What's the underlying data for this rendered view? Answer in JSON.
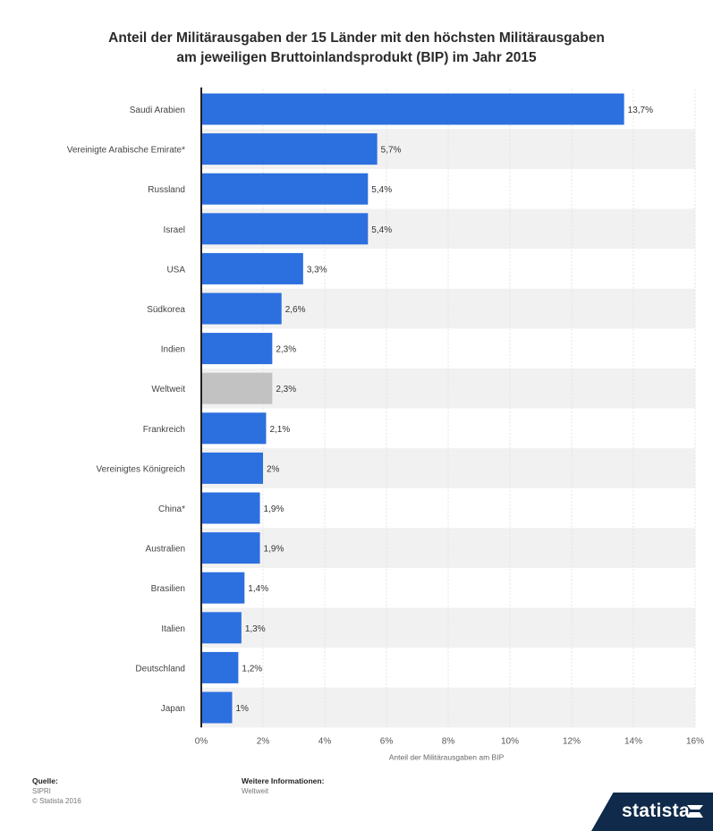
{
  "title": {
    "line1": "Anteil der Militärausgaben der 15 Länder mit den höchsten Militärausgaben",
    "line2": "am jeweiligen Bruttoinlandsprodukt (BIP) im Jahr 2015"
  },
  "chart_data": {
    "type": "bar",
    "orientation": "horizontal",
    "categories": [
      "Saudi Arabien",
      "Vereinigte Arabische Emirate*",
      "Russland",
      "Israel",
      "USA",
      "Südkorea",
      "Indien",
      "Weltweit",
      "Frankreich",
      "Vereinigtes Königreich",
      "China*",
      "Australien",
      "Brasilien",
      "Italien",
      "Deutschland",
      "Japan"
    ],
    "values": [
      13.7,
      5.7,
      5.4,
      5.4,
      3.3,
      2.6,
      2.3,
      2.3,
      2.1,
      2.0,
      1.9,
      1.9,
      1.4,
      1.3,
      1.2,
      1.0
    ],
    "value_labels": [
      "13,7%",
      "5,7%",
      "5,4%",
      "5,4%",
      "3,3%",
      "2,6%",
      "2,3%",
      "2,3%",
      "2,1%",
      "2%",
      "1,9%",
      "1,9%",
      "1,4%",
      "1,3%",
      "1,2%",
      "1%"
    ],
    "highlight_category": "Weltweit",
    "xlabel": "Anteil der Militärausgaben am BIP",
    "ylabel": "",
    "xlim": [
      0,
      16
    ],
    "xticks": [
      0,
      2,
      4,
      6,
      8,
      10,
      12,
      14,
      16
    ],
    "xtick_labels": [
      "0%",
      "2%",
      "4%",
      "6%",
      "8%",
      "10%",
      "12%",
      "14%",
      "16%"
    ],
    "grid": true,
    "colors": {
      "bar": "#2c6fde",
      "highlight": "#c2c2c2",
      "band": "#f1f1f1",
      "axis": "#222222"
    }
  },
  "footer": {
    "source_label": "Quelle:",
    "source_name": "SIPRI",
    "copyright": "© Statista 2016",
    "info_label": "Weitere Informationen:",
    "info_value": "Weltweit"
  },
  "brand": {
    "name": "statista"
  }
}
